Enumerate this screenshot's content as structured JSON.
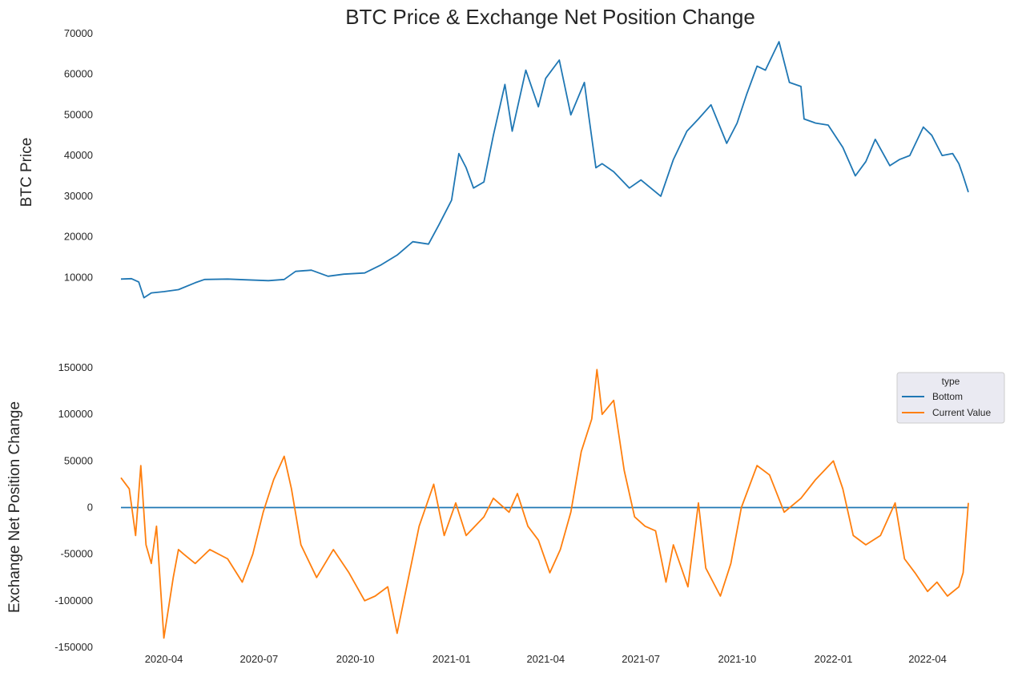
{
  "chart_data": {
    "type": "line",
    "title": "BTC Price & Exchange Net Position Change",
    "x_range": [
      "2020-02-20",
      "2022-05-10"
    ],
    "x_ticks": [
      "2020-04",
      "2020-07",
      "2020-10",
      "2021-01",
      "2021-04",
      "2021-07",
      "2021-10",
      "2022-01",
      "2022-04"
    ],
    "subplots": [
      {
        "id": "price",
        "ylabel": "BTC  Price",
        "ylim": [
          0,
          70000
        ],
        "y_ticks": [
          "10000",
          "20000",
          "30000",
          "40000",
          "50000",
          "60000",
          "70000"
        ],
        "grid": false,
        "series": [
          {
            "name": "",
            "color": "#1f77b4",
            "x": [
              "2020-02-20",
              "2020-03-01",
              "2020-03-08",
              "2020-03-13",
              "2020-03-20",
              "2020-04-01",
              "2020-04-15",
              "2020-05-01",
              "2020-05-10",
              "2020-06-01",
              "2020-06-20",
              "2020-07-10",
              "2020-07-25",
              "2020-08-05",
              "2020-08-20",
              "2020-09-05",
              "2020-09-20",
              "2020-10-10",
              "2020-10-25",
              "2020-11-10",
              "2020-11-25",
              "2020-12-10",
              "2020-12-20",
              "2021-01-01",
              "2021-01-08",
              "2021-01-15",
              "2021-01-22",
              "2021-02-01",
              "2021-02-10",
              "2021-02-21",
              "2021-02-28",
              "2021-03-13",
              "2021-03-25",
              "2021-04-01",
              "2021-04-14",
              "2021-04-25",
              "2021-05-08",
              "2021-05-12",
              "2021-05-19",
              "2021-05-25",
              "2021-06-05",
              "2021-06-20",
              "2021-07-01",
              "2021-07-20",
              "2021-08-01",
              "2021-08-14",
              "2021-08-25",
              "2021-09-06",
              "2021-09-21",
              "2021-10-01",
              "2021-10-10",
              "2021-10-20",
              "2021-10-28",
              "2021-11-10",
              "2021-11-20",
              "2021-12-01",
              "2021-12-04",
              "2021-12-15",
              "2021-12-27",
              "2022-01-10",
              "2022-01-22",
              "2022-02-01",
              "2022-02-10",
              "2022-02-24",
              "2022-03-05",
              "2022-03-15",
              "2022-03-28",
              "2022-04-05",
              "2022-04-15",
              "2022-04-25",
              "2022-05-01",
              "2022-05-05",
              "2022-05-10"
            ],
            "y": [
              9600,
              9700,
              8900,
              5000,
              6200,
              6500,
              7000,
              8700,
              9500,
              9600,
              9400,
              9200,
              9500,
              11500,
              11800,
              10300,
              10800,
              11100,
              13000,
              15500,
              18800,
              18200,
              23000,
              29000,
              40500,
              37000,
              32000,
              33500,
              45000,
              57500,
              46000,
              61000,
              52000,
              59000,
              63500,
              50000,
              58000,
              50000,
              37000,
              38000,
              36000,
              32000,
              34000,
              30000,
              39000,
              46000,
              49000,
              52500,
              43000,
              48000,
              55000,
              62000,
              61000,
              68000,
              58000,
              57000,
              49000,
              48000,
              47500,
              42000,
              35000,
              38500,
              44000,
              37500,
              39000,
              40000,
              47000,
              45000,
              40000,
              40500,
              38000,
              35000,
              31000
            ]
          }
        ]
      },
      {
        "id": "position",
        "ylabel": "Exchange Net Position Change",
        "ylim": [
          -150000,
          150000
        ],
        "y_ticks": [
          "150000",
          "100000",
          "50000",
          "0",
          "-50000",
          "-100000",
          "-150000"
        ],
        "grid": false,
        "legend": {
          "title": "type",
          "position": "upper-right"
        },
        "series": [
          {
            "name": "Bottom",
            "color": "#1f77b4",
            "x": [
              "2020-02-20",
              "2022-05-10"
            ],
            "y": [
              0,
              0
            ]
          },
          {
            "name": "Current Value",
            "color": "#ff7f0e",
            "x": [
              "2020-02-20",
              "2020-02-28",
              "2020-03-05",
              "2020-03-10",
              "2020-03-15",
              "2020-03-20",
              "2020-03-25",
              "2020-04-01",
              "2020-04-10",
              "2020-04-15",
              "2020-04-20",
              "2020-05-01",
              "2020-05-15",
              "2020-06-01",
              "2020-06-15",
              "2020-06-25",
              "2020-07-05",
              "2020-07-15",
              "2020-07-25",
              "2020-08-01",
              "2020-08-10",
              "2020-08-25",
              "2020-09-10",
              "2020-09-25",
              "2020-10-10",
              "2020-10-20",
              "2020-11-01",
              "2020-11-10",
              "2020-11-20",
              "2020-12-01",
              "2020-12-15",
              "2020-12-25",
              "2021-01-05",
              "2021-01-15",
              "2021-02-01",
              "2021-02-10",
              "2021-02-25",
              "2021-03-05",
              "2021-03-15",
              "2021-03-25",
              "2021-04-05",
              "2021-04-15",
              "2021-04-25",
              "2021-05-05",
              "2021-05-15",
              "2021-05-20",
              "2021-05-25",
              "2021-06-05",
              "2021-06-15",
              "2021-06-25",
              "2021-07-05",
              "2021-07-15",
              "2021-07-25",
              "2021-08-01",
              "2021-08-15",
              "2021-08-25",
              "2021-09-01",
              "2021-09-15",
              "2021-09-25",
              "2021-10-05",
              "2021-10-20",
              "2021-11-01",
              "2021-11-15",
              "2021-12-01",
              "2021-12-15",
              "2022-01-01",
              "2022-01-10",
              "2022-01-20",
              "2022-02-01",
              "2022-02-15",
              "2022-03-01",
              "2022-03-10",
              "2022-03-20",
              "2022-04-01",
              "2022-04-10",
              "2022-04-20",
              "2022-05-01",
              "2022-05-05",
              "2022-05-10"
            ],
            "y": [
              32000,
              20000,
              -30000,
              45000,
              -40000,
              -60000,
              -20000,
              -140000,
              -75000,
              -45000,
              -50000,
              -60000,
              -45000,
              -55000,
              -80000,
              -50000,
              -5000,
              30000,
              55000,
              20000,
              -40000,
              -75000,
              -45000,
              -70000,
              -100000,
              -95000,
              -85000,
              -135000,
              -80000,
              -20000,
              25000,
              -30000,
              5000,
              -30000,
              -10000,
              10000,
              -5000,
              15000,
              -20000,
              -35000,
              -70000,
              -45000,
              -5000,
              60000,
              95000,
              148000,
              100000,
              115000,
              40000,
              -10000,
              -20000,
              -25000,
              -80000,
              -40000,
              -85000,
              5000,
              -65000,
              -95000,
              -60000,
              0,
              45000,
              35000,
              -5000,
              10000,
              30000,
              50000,
              20000,
              -30000,
              -40000,
              -30000,
              5000,
              -55000,
              -70000,
              -90000,
              -80000,
              -95000,
              -85000,
              -70000,
              5000
            ]
          }
        ]
      }
    ]
  }
}
